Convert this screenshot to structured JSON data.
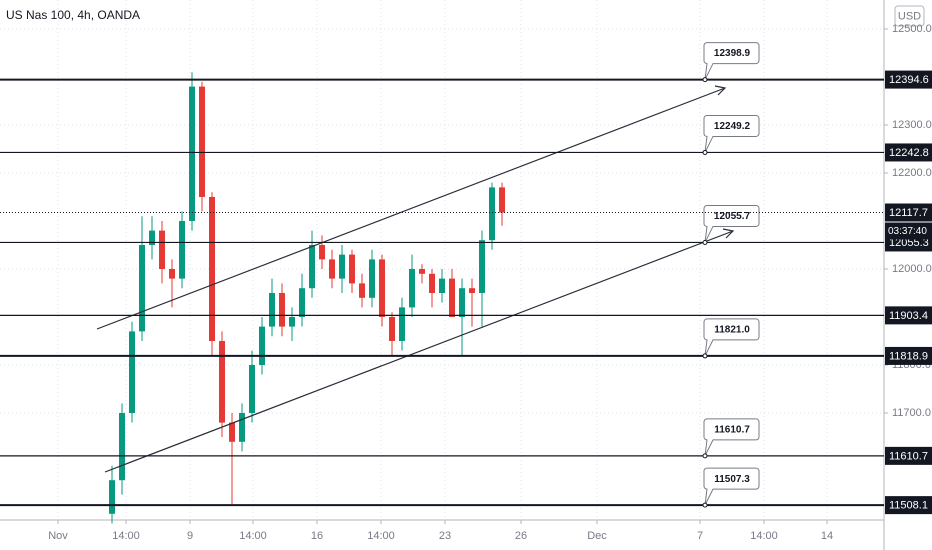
{
  "chart_data": {
    "type": "candlestick",
    "title": "US Nas 100, 4h, OANDA",
    "currency": "USD",
    "xlim": [
      0,
      221
    ],
    "xticks": [
      {
        "value": 14.5,
        "label": "Nov"
      },
      {
        "value": 31.5,
        "label": "14:00"
      },
      {
        "value": 47.5,
        "label": "9"
      },
      {
        "value": 63.25,
        "label": "14:00"
      },
      {
        "value": 79.25,
        "label": "16"
      },
      {
        "value": 95.25,
        "label": "14:00"
      },
      {
        "value": 111.25,
        "label": "23"
      },
      {
        "value": 130.25,
        "label": "26"
      },
      {
        "value": 149.25,
        "label": "Dec"
      },
      {
        "value": 175,
        "label": "7"
      },
      {
        "value": 191,
        "label": "14:00"
      },
      {
        "value": 206.75,
        "label": "14"
      }
    ],
    "ylim": [
      11477.1,
      12560.4
    ],
    "yticks": [
      {
        "value": 12500,
        "label": "12500.0"
      },
      {
        "value": 12300,
        "label": "12300.0"
      },
      {
        "value": 12200,
        "label": "12200.0"
      },
      {
        "value": 12000,
        "label": "12000.0"
      },
      {
        "value": 11800,
        "label": "11800.0"
      },
      {
        "value": 11700,
        "label": "11700.0"
      }
    ],
    "x": [
      28,
      30.5,
      33,
      35.5,
      38,
      40.5,
      43,
      45.5,
      48,
      50.5,
      53,
      55.5,
      58,
      60.5,
      63,
      65.5,
      68,
      70.5,
      73,
      75.5,
      78,
      80.5,
      83,
      85.5,
      88,
      90.5,
      93,
      95.5,
      98,
      100.5,
      103,
      105.5,
      108,
      110.5,
      113,
      115.5,
      118,
      120.5,
      123,
      125.5
    ],
    "open": [
      11490,
      11560,
      11700,
      11870,
      12050,
      12080,
      12000,
      11980,
      12100,
      12380,
      12150,
      11850,
      11680,
      11640,
      11700,
      11800,
      11880,
      11950,
      11880,
      11900,
      11960,
      12050,
      12020,
      11980,
      12030,
      11970,
      11940,
      12020,
      11900,
      11850,
      11920,
      12000,
      11990,
      11950,
      11980,
      11900,
      11960,
      11950,
      12060,
      12170
    ],
    "high": [
      11590,
      11720,
      11890,
      12110,
      12110,
      12100,
      12020,
      12120,
      12410,
      12390,
      12160,
      11870,
      11700,
      11720,
      11830,
      11900,
      11980,
      11970,
      11920,
      11990,
      12080,
      12070,
      12040,
      12050,
      12040,
      11990,
      12040,
      12030,
      11910,
      11940,
      12030,
      12010,
      12000,
      12000,
      12000,
      11980,
      11980,
      12080,
      12180,
      12180
    ],
    "low": [
      11470,
      11530,
      11680,
      11850,
      12020,
      11970,
      11920,
      11960,
      12080,
      12120,
      11820,
      11650,
      11510,
      11620,
      11680,
      11780,
      11860,
      11860,
      11850,
      11880,
      11940,
      12000,
      11960,
      11950,
      11950,
      11920,
      11920,
      11880,
      11820,
      11830,
      11900,
      11970,
      11920,
      11930,
      11910,
      11820,
      11880,
      11880,
      12040,
      12090
    ],
    "close": [
      11560,
      11700,
      11870,
      12050,
      12080,
      12000,
      11980,
      12100,
      12380,
      12150,
      11850,
      11680,
      11640,
      11700,
      11800,
      11880,
      11950,
      11880,
      11900,
      11960,
      12050,
      12020,
      11980,
      12030,
      11970,
      11940,
      12020,
      11900,
      11850,
      11920,
      12000,
      11990,
      11950,
      11980,
      11900,
      11960,
      11950,
      12060,
      12170,
      12117.7
    ],
    "up_color": "#089981",
    "down_color": "#e53935",
    "levels": [
      {
        "value": 12394.6,
        "callout": "12398.9",
        "bold": true
      },
      {
        "value": 12242.8,
        "callout": "12249.2",
        "bold": false
      },
      {
        "value": 12055.3,
        "callout": "12055.7",
        "bold": false
      },
      {
        "value": 11903.4,
        "bold": false
      },
      {
        "value": 11818.9,
        "callout": "11821.0",
        "bold": true
      },
      {
        "value": 11610.7,
        "callout": "11610.7",
        "bold": false
      },
      {
        "value": 11508.1,
        "callout": "11507.3",
        "bold": true
      }
    ],
    "last": 12117.7,
    "countdown": "03:37:40"
  }
}
